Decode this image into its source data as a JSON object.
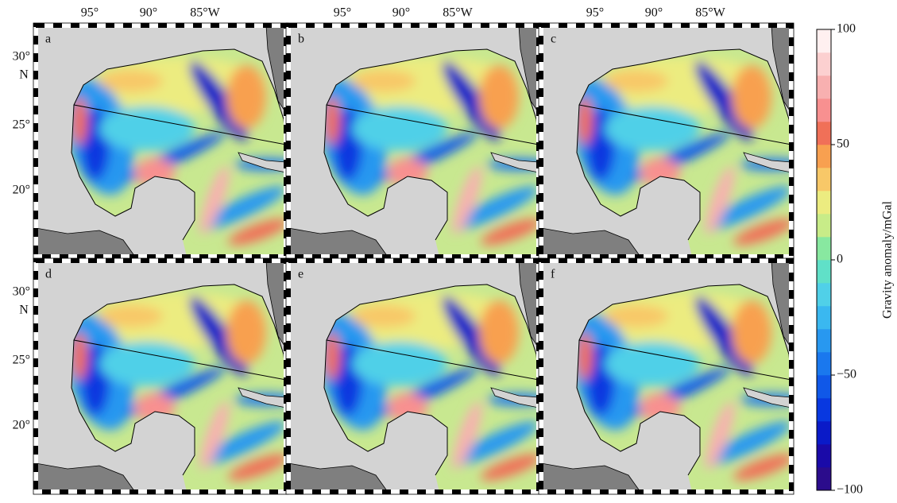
{
  "panels": [
    {
      "label": "a"
    },
    {
      "label": "b"
    },
    {
      "label": "c"
    },
    {
      "label": "d"
    },
    {
      "label": "e"
    },
    {
      "label": "f"
    }
  ],
  "lon_ticks": [
    "95°",
    "90°",
    "85°W"
  ],
  "lat_ticks": [
    "30°",
    "25°",
    "20°"
  ],
  "lat_hemisphere": "N",
  "colorbar": {
    "label": "Gravity anomaly/mGal",
    "lim": [
      -100,
      100
    ],
    "ticks": [
      100,
      50,
      0,
      {
        "value": -50,
        "label": "−50"
      },
      {
        "value": -100,
        "label": "−100"
      }
    ],
    "colors": [
      "#2b0c8c",
      "#1a0aa8",
      "#0a1ac8",
      "#0838e0",
      "#1058e8",
      "#1a78ee",
      "#2898f0",
      "#3ab8f0",
      "#50d0e8",
      "#60e0c8",
      "#88e8a0",
      "#c8ec88",
      "#ecec80",
      "#f8c868",
      "#f8a050",
      "#f07058",
      "#f89090",
      "#f8b0b0",
      "#fcd0d0",
      "#fff0f0"
    ]
  }
}
